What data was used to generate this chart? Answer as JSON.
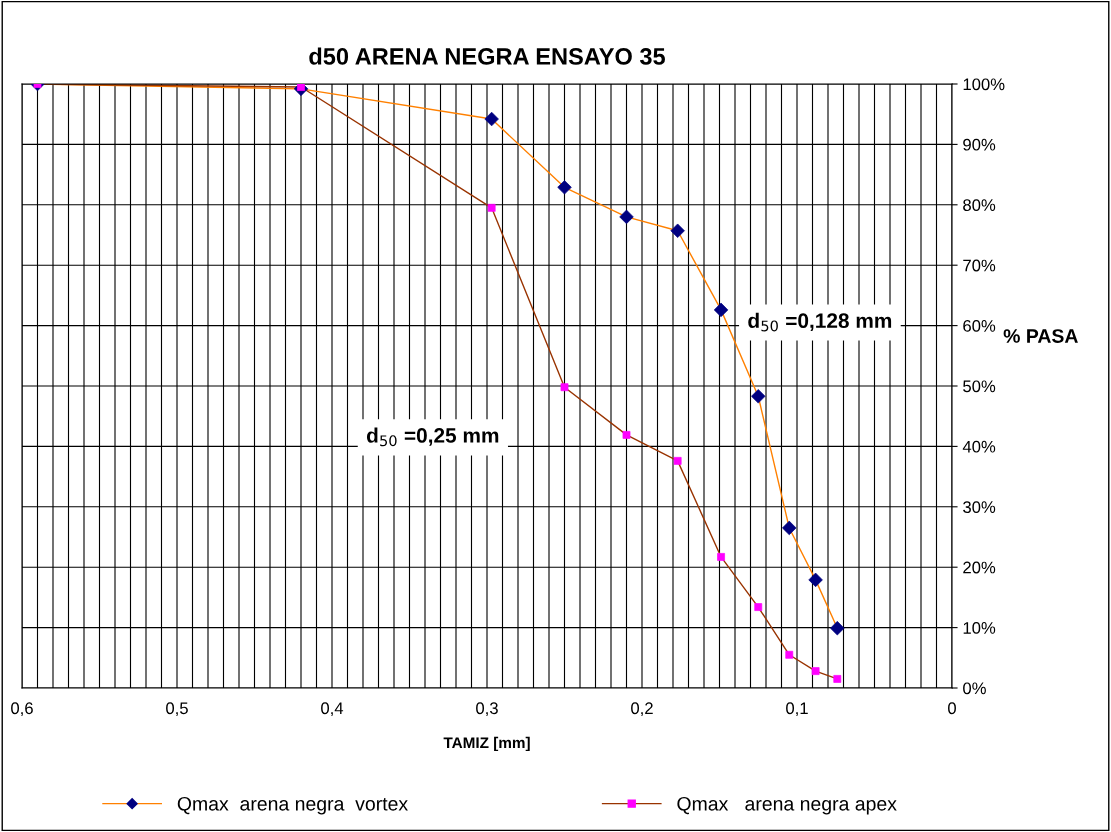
{
  "chart_data": {
    "type": "line",
    "title": "d50 ARENA NEGRA ENSAYO 35",
    "xlabel": "TAMIZ [mm]",
    "ylabel": "% PASA",
    "xlim": [
      0.6,
      0
    ],
    "ylim": [
      0,
      100
    ],
    "xticks": [
      {
        "value": 0.6,
        "label": "0,6"
      },
      {
        "value": 0.59,
        "label": null
      },
      {
        "value": 0.58,
        "label": null
      },
      {
        "value": 0.57,
        "label": null
      },
      {
        "value": 0.56,
        "label": null
      },
      {
        "value": 0.55,
        "label": null
      },
      {
        "value": 0.54,
        "label": null
      },
      {
        "value": 0.53,
        "label": null
      },
      {
        "value": 0.52,
        "label": null
      },
      {
        "value": 0.51,
        "label": null
      },
      {
        "value": 0.5,
        "label": "0,5"
      },
      {
        "value": 0.49,
        "label": null
      },
      {
        "value": 0.48,
        "label": null
      },
      {
        "value": 0.47,
        "label": null
      },
      {
        "value": 0.46,
        "label": null
      },
      {
        "value": 0.45,
        "label": null
      },
      {
        "value": 0.44,
        "label": null
      },
      {
        "value": 0.43,
        "label": null
      },
      {
        "value": 0.42,
        "label": null
      },
      {
        "value": 0.41,
        "label": null
      },
      {
        "value": 0.4,
        "label": "0,4"
      },
      {
        "value": 0.39,
        "label": null
      },
      {
        "value": 0.38,
        "label": null
      },
      {
        "value": 0.37,
        "label": null
      },
      {
        "value": 0.36,
        "label": null
      },
      {
        "value": 0.35,
        "label": null
      },
      {
        "value": 0.34,
        "label": null
      },
      {
        "value": 0.33,
        "label": null
      },
      {
        "value": 0.32,
        "label": null
      },
      {
        "value": 0.31,
        "label": null
      },
      {
        "value": 0.3,
        "label": "0,3"
      },
      {
        "value": 0.29,
        "label": null
      },
      {
        "value": 0.28,
        "label": null
      },
      {
        "value": 0.27,
        "label": null
      },
      {
        "value": 0.26,
        "label": null
      },
      {
        "value": 0.25,
        "label": null
      },
      {
        "value": 0.24,
        "label": null
      },
      {
        "value": 0.23,
        "label": null
      },
      {
        "value": 0.22,
        "label": null
      },
      {
        "value": 0.21,
        "label": null
      },
      {
        "value": 0.2,
        "label": "0,2"
      },
      {
        "value": 0.19,
        "label": null
      },
      {
        "value": 0.18,
        "label": null
      },
      {
        "value": 0.17,
        "label": null
      },
      {
        "value": 0.16,
        "label": null
      },
      {
        "value": 0.15,
        "label": null
      },
      {
        "value": 0.14,
        "label": null
      },
      {
        "value": 0.13,
        "label": null
      },
      {
        "value": 0.12,
        "label": null
      },
      {
        "value": 0.11,
        "label": null
      },
      {
        "value": 0.1,
        "label": "0,1"
      },
      {
        "value": 0.09,
        "label": null
      },
      {
        "value": 0.08,
        "label": null
      },
      {
        "value": 0.07,
        "label": null
      },
      {
        "value": 0.06,
        "label": null
      },
      {
        "value": 0.05,
        "label": null
      },
      {
        "value": 0.04,
        "label": null
      },
      {
        "value": 0.03,
        "label": null
      },
      {
        "value": 0.02,
        "label": null
      },
      {
        "value": 0.01,
        "label": null
      },
      {
        "value": 0,
        "label": "0"
      }
    ],
    "yticks": [
      {
        "value": 0,
        "label": "0%"
      },
      {
        "value": 10,
        "label": "10%"
      },
      {
        "value": 20,
        "label": "20%"
      },
      {
        "value": 30,
        "label": "30%"
      },
      {
        "value": 40,
        "label": "40%"
      },
      {
        "value": 50,
        "label": "50%"
      },
      {
        "value": 60,
        "label": "60%"
      },
      {
        "value": 70,
        "label": "70%"
      },
      {
        "value": 80,
        "label": "80%"
      },
      {
        "value": 90,
        "label": "90%"
      },
      {
        "value": 100,
        "label": "100%"
      }
    ],
    "grid": true,
    "legend": "bottom",
    "line_style": "solid",
    "annotations": [
      "d$_{50}$ =0,128 mm",
      "d$_{50}$ =0,25 mm"
    ],
    "series": [
      {
        "name": "Qmax  arena negra  vortex",
        "color": "#ff8000",
        "marker": "diamond",
        "x": [
          0.59,
          0.42,
          0.297,
          0.25,
          0.21,
          0.177,
          0.149,
          0.125,
          0.105,
          0.088,
          0.074
        ],
        "values": [
          100,
          99.2,
          94.2,
          82.9,
          78,
          75.7,
          62.6,
          48.3,
          26.5,
          17.9,
          9.9
        ],
        "colors": [
          "#000080",
          "#000080",
          "#000080",
          "#000080",
          "#000080",
          "#000080",
          "#000080",
          "#000080",
          "#000080",
          "#000080",
          "#000080"
        ]
      },
      {
        "name": "Qmax   arena negra apex",
        "color": "#993300",
        "marker": "square",
        "x": [
          0.59,
          0.42,
          0.297,
          0.25,
          0.21,
          0.177,
          0.149,
          0.125,
          0.105,
          0.088,
          0.074
        ],
        "values": [
          100,
          99.5,
          79.5,
          49.8,
          41.9,
          37.6,
          21.7,
          13.4,
          5.5,
          2.8,
          1.5
        ],
        "colors": [
          "#ff00ff",
          "#ff00ff",
          "#ff00ff",
          "#ff00ff",
          "#ff00ff",
          "#ff00ff",
          "#ff00ff",
          "#ff00ff",
          "#ff00ff",
          "#ff00ff",
          "#ff00ff"
        ]
      }
    ]
  }
}
